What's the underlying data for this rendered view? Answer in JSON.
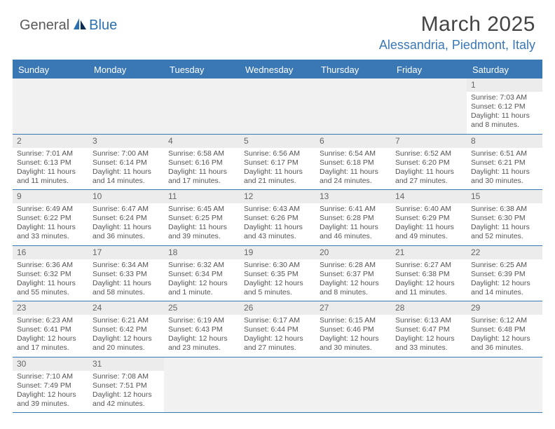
{
  "logo": {
    "part1": "General",
    "part2": "Blue"
  },
  "title": "March 2025",
  "location": "Alessandria, Piedmont, Italy",
  "dayHeaders": [
    "Sunday",
    "Monday",
    "Tuesday",
    "Wednesday",
    "Thursday",
    "Friday",
    "Saturday"
  ],
  "colors": {
    "headerBar": "#3a77b5",
    "locationText": "#3a77b5",
    "dayNumBg": "#ececec",
    "blankBg": "#f1f1f1"
  },
  "weeks": [
    [
      {
        "blank": true
      },
      {
        "blank": true
      },
      {
        "blank": true
      },
      {
        "blank": true
      },
      {
        "blank": true
      },
      {
        "blank": true
      },
      {
        "daynum": "1",
        "sunrise": "Sunrise: 7:03 AM",
        "sunset": "Sunset: 6:12 PM",
        "daylight": "Daylight: 11 hours and 8 minutes."
      }
    ],
    [
      {
        "daynum": "2",
        "sunrise": "Sunrise: 7:01 AM",
        "sunset": "Sunset: 6:13 PM",
        "daylight": "Daylight: 11 hours and 11 minutes."
      },
      {
        "daynum": "3",
        "sunrise": "Sunrise: 7:00 AM",
        "sunset": "Sunset: 6:14 PM",
        "daylight": "Daylight: 11 hours and 14 minutes."
      },
      {
        "daynum": "4",
        "sunrise": "Sunrise: 6:58 AM",
        "sunset": "Sunset: 6:16 PM",
        "daylight": "Daylight: 11 hours and 17 minutes."
      },
      {
        "daynum": "5",
        "sunrise": "Sunrise: 6:56 AM",
        "sunset": "Sunset: 6:17 PM",
        "daylight": "Daylight: 11 hours and 21 minutes."
      },
      {
        "daynum": "6",
        "sunrise": "Sunrise: 6:54 AM",
        "sunset": "Sunset: 6:18 PM",
        "daylight": "Daylight: 11 hours and 24 minutes."
      },
      {
        "daynum": "7",
        "sunrise": "Sunrise: 6:52 AM",
        "sunset": "Sunset: 6:20 PM",
        "daylight": "Daylight: 11 hours and 27 minutes."
      },
      {
        "daynum": "8",
        "sunrise": "Sunrise: 6:51 AM",
        "sunset": "Sunset: 6:21 PM",
        "daylight": "Daylight: 11 hours and 30 minutes."
      }
    ],
    [
      {
        "daynum": "9",
        "sunrise": "Sunrise: 6:49 AM",
        "sunset": "Sunset: 6:22 PM",
        "daylight": "Daylight: 11 hours and 33 minutes."
      },
      {
        "daynum": "10",
        "sunrise": "Sunrise: 6:47 AM",
        "sunset": "Sunset: 6:24 PM",
        "daylight": "Daylight: 11 hours and 36 minutes."
      },
      {
        "daynum": "11",
        "sunrise": "Sunrise: 6:45 AM",
        "sunset": "Sunset: 6:25 PM",
        "daylight": "Daylight: 11 hours and 39 minutes."
      },
      {
        "daynum": "12",
        "sunrise": "Sunrise: 6:43 AM",
        "sunset": "Sunset: 6:26 PM",
        "daylight": "Daylight: 11 hours and 43 minutes."
      },
      {
        "daynum": "13",
        "sunrise": "Sunrise: 6:41 AM",
        "sunset": "Sunset: 6:28 PM",
        "daylight": "Daylight: 11 hours and 46 minutes."
      },
      {
        "daynum": "14",
        "sunrise": "Sunrise: 6:40 AM",
        "sunset": "Sunset: 6:29 PM",
        "daylight": "Daylight: 11 hours and 49 minutes."
      },
      {
        "daynum": "15",
        "sunrise": "Sunrise: 6:38 AM",
        "sunset": "Sunset: 6:30 PM",
        "daylight": "Daylight: 11 hours and 52 minutes."
      }
    ],
    [
      {
        "daynum": "16",
        "sunrise": "Sunrise: 6:36 AM",
        "sunset": "Sunset: 6:32 PM",
        "daylight": "Daylight: 11 hours and 55 minutes."
      },
      {
        "daynum": "17",
        "sunrise": "Sunrise: 6:34 AM",
        "sunset": "Sunset: 6:33 PM",
        "daylight": "Daylight: 11 hours and 58 minutes."
      },
      {
        "daynum": "18",
        "sunrise": "Sunrise: 6:32 AM",
        "sunset": "Sunset: 6:34 PM",
        "daylight": "Daylight: 12 hours and 1 minute."
      },
      {
        "daynum": "19",
        "sunrise": "Sunrise: 6:30 AM",
        "sunset": "Sunset: 6:35 PM",
        "daylight": "Daylight: 12 hours and 5 minutes."
      },
      {
        "daynum": "20",
        "sunrise": "Sunrise: 6:28 AM",
        "sunset": "Sunset: 6:37 PM",
        "daylight": "Daylight: 12 hours and 8 minutes."
      },
      {
        "daynum": "21",
        "sunrise": "Sunrise: 6:27 AM",
        "sunset": "Sunset: 6:38 PM",
        "daylight": "Daylight: 12 hours and 11 minutes."
      },
      {
        "daynum": "22",
        "sunrise": "Sunrise: 6:25 AM",
        "sunset": "Sunset: 6:39 PM",
        "daylight": "Daylight: 12 hours and 14 minutes."
      }
    ],
    [
      {
        "daynum": "23",
        "sunrise": "Sunrise: 6:23 AM",
        "sunset": "Sunset: 6:41 PM",
        "daylight": "Daylight: 12 hours and 17 minutes."
      },
      {
        "daynum": "24",
        "sunrise": "Sunrise: 6:21 AM",
        "sunset": "Sunset: 6:42 PM",
        "daylight": "Daylight: 12 hours and 20 minutes."
      },
      {
        "daynum": "25",
        "sunrise": "Sunrise: 6:19 AM",
        "sunset": "Sunset: 6:43 PM",
        "daylight": "Daylight: 12 hours and 23 minutes."
      },
      {
        "daynum": "26",
        "sunrise": "Sunrise: 6:17 AM",
        "sunset": "Sunset: 6:44 PM",
        "daylight": "Daylight: 12 hours and 27 minutes."
      },
      {
        "daynum": "27",
        "sunrise": "Sunrise: 6:15 AM",
        "sunset": "Sunset: 6:46 PM",
        "daylight": "Daylight: 12 hours and 30 minutes."
      },
      {
        "daynum": "28",
        "sunrise": "Sunrise: 6:13 AM",
        "sunset": "Sunset: 6:47 PM",
        "daylight": "Daylight: 12 hours and 33 minutes."
      },
      {
        "daynum": "29",
        "sunrise": "Sunrise: 6:12 AM",
        "sunset": "Sunset: 6:48 PM",
        "daylight": "Daylight: 12 hours and 36 minutes."
      }
    ],
    [
      {
        "daynum": "30",
        "sunrise": "Sunrise: 7:10 AM",
        "sunset": "Sunset: 7:49 PM",
        "daylight": "Daylight: 12 hours and 39 minutes."
      },
      {
        "daynum": "31",
        "sunrise": "Sunrise: 7:08 AM",
        "sunset": "Sunset: 7:51 PM",
        "daylight": "Daylight: 12 hours and 42 minutes."
      },
      {
        "blank": true
      },
      {
        "blank": true
      },
      {
        "blank": true
      },
      {
        "blank": true
      },
      {
        "blank": true
      }
    ]
  ]
}
